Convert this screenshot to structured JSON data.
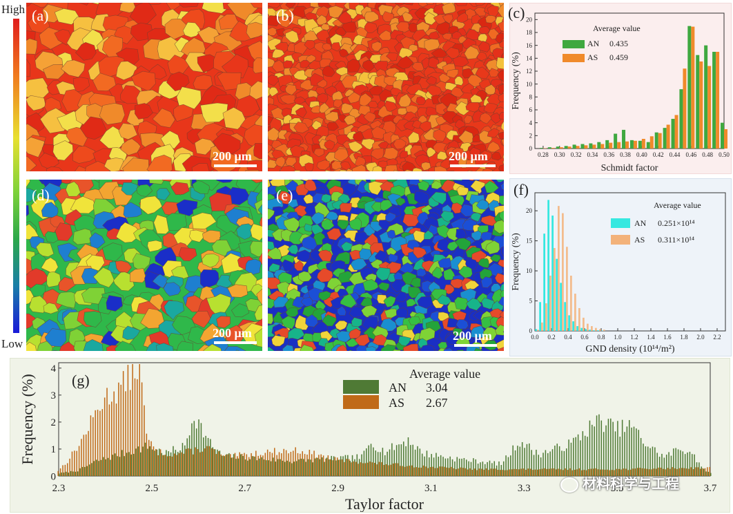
{
  "colorbar": {
    "high": "High",
    "low": "Low"
  },
  "maps": [
    {
      "label": "(a)",
      "scale": "200 μm",
      "palette": [
        "#e8361a",
        "#ee4a1c",
        "#f26a22",
        "#f08a2a",
        "#f5a236",
        "#e02a16",
        "#f6c040",
        "#f3df4a"
      ]
    },
    {
      "label": "(b)",
      "scale": "200 μm",
      "palette": [
        "#e8381a",
        "#ec4e1e",
        "#e4301a",
        "#f06a22",
        "#d92812",
        "#f08c2c",
        "#f4c23c"
      ]
    },
    {
      "label": "(d)",
      "scale": "200 μm",
      "palette": [
        "#2fb84a",
        "#7fd236",
        "#b8e030",
        "#f0e43a",
        "#f3a531",
        "#e8542a",
        "#1e7fd0",
        "#1a2ec8",
        "#1aa8a0",
        "#e23a2a"
      ]
    },
    {
      "label": "(e)",
      "scale": "200 μm",
      "palette": [
        "#1a2fc4",
        "#1b4fd6",
        "#23a43a",
        "#36c043",
        "#7fd336",
        "#1a8fd0",
        "#17b48a",
        "#f0d43a",
        "#e64a2a"
      ]
    }
  ],
  "chart_data": [
    {
      "type": "bar",
      "label": "(c)",
      "xlabel": "Schmidt factor",
      "ylabel": "Frequency (%)",
      "xlim": [
        0.27,
        0.5
      ],
      "ylim": [
        0,
        21
      ],
      "xticks": [
        "0.28",
        "0.30",
        "0.32",
        "0.34",
        "0.36",
        "0.38",
        "0.40",
        "0.42",
        "0.44",
        "0.46",
        "0.48",
        "0.50"
      ],
      "yticks": [
        "0",
        "2",
        "4",
        "6",
        "8",
        "10",
        "12",
        "14",
        "16",
        "18",
        "20"
      ],
      "legend_title": "Average value",
      "x": [
        0.28,
        0.29,
        0.3,
        0.31,
        0.32,
        0.33,
        0.34,
        0.35,
        0.36,
        0.37,
        0.38,
        0.39,
        0.4,
        0.41,
        0.42,
        0.43,
        0.44,
        0.45,
        0.46,
        0.47,
        0.48,
        0.49,
        0.5
      ],
      "series": [
        {
          "name": "AN",
          "avg": "0.435",
          "color": "#3fa83f",
          "values": [
            0.1,
            0.2,
            0.3,
            0.4,
            0.6,
            0.7,
            0.8,
            1.0,
            1.3,
            2.3,
            2.9,
            1.3,
            1.2,
            1.0,
            2.5,
            3.2,
            4.6,
            9.2,
            19.0,
            14.5,
            16.0,
            15.0,
            4.0
          ]
        },
        {
          "name": "AS",
          "avg": "0.459",
          "color": "#f08a2a",
          "values": [
            0.05,
            0.1,
            0.2,
            0.3,
            0.4,
            0.5,
            0.6,
            0.7,
            0.9,
            1.0,
            1.1,
            1.2,
            1.5,
            1.9,
            2.4,
            3.7,
            5.2,
            12.4,
            18.9,
            13.5,
            12.8,
            15.0,
            3.0
          ]
        }
      ]
    },
    {
      "type": "bar",
      "label": "(f)",
      "xlabel": "GND density (10¹⁴/m²)",
      "ylabel": "Frequency (%)",
      "xlim": [
        0,
        2.3
      ],
      "ylim": [
        0,
        23
      ],
      "xticks": [
        "0.0",
        "0.2",
        "0.4",
        "0.6",
        "0.8",
        "1.0",
        "1.2",
        "1.4",
        "1.6",
        "1.8",
        "2.0",
        "2.2"
      ],
      "yticks": [
        "0",
        "5",
        "10",
        "15",
        "20"
      ],
      "legend_title": "Average value",
      "x": [
        0.025,
        0.075,
        0.125,
        0.175,
        0.225,
        0.275,
        0.325,
        0.375,
        0.425,
        0.475,
        0.525,
        0.575,
        0.625,
        0.675,
        0.725,
        0.775,
        0.825
      ],
      "series": [
        {
          "name": "AN",
          "avg": "0.251×10¹⁴",
          "color": "#36e8e0",
          "values": [
            0.3,
            4.8,
            16.2,
            21.8,
            19.2,
            12.0,
            8.0,
            4.8,
            2.6,
            1.6,
            0.8,
            0.5,
            0.3,
            0.2,
            0.1,
            0.1,
            0.05
          ]
        },
        {
          "name": "AS",
          "avg": "0.311×10¹⁴",
          "color": "#f3b27a",
          "values": [
            0.2,
            1.4,
            4.6,
            9.2,
            13.8,
            20.8,
            19.6,
            14.0,
            9.2,
            6.2,
            3.8,
            2.2,
            1.2,
            0.8,
            0.5,
            0.3,
            0.2
          ]
        }
      ]
    },
    {
      "type": "bar",
      "label": "(g)",
      "xlabel": "Taylor factor",
      "ylabel": "Frequency (%)",
      "xlim": [
        2.3,
        3.7
      ],
      "ylim": [
        0,
        4.2
      ],
      "xticks": [
        "2.3",
        "2.5",
        "2.7",
        "2.9",
        "3.1",
        "3.3",
        "3.5",
        "3.7"
      ],
      "yticks": [
        "0",
        "1",
        "2",
        "3",
        "4"
      ],
      "legend_title": "Average value",
      "bin_width": 0.005,
      "series": [
        {
          "name": "AN",
          "avg": "3.04",
          "color": "#4f7a35",
          "segments": [
            [
              2.3,
              0.1
            ],
            [
              2.34,
              0.2
            ],
            [
              2.38,
              0.55
            ],
            [
              2.42,
              0.75
            ],
            [
              2.46,
              0.95
            ],
            [
              2.49,
              1.1
            ],
            [
              2.53,
              0.85
            ],
            [
              2.57,
              1.1
            ],
            [
              2.59,
              2.3
            ],
            [
              2.62,
              1.3
            ],
            [
              2.65,
              0.75
            ],
            [
              2.8,
              0.55
            ],
            [
              2.95,
              0.7
            ],
            [
              2.97,
              1.25
            ],
            [
              3.0,
              0.9
            ],
            [
              3.05,
              1.35
            ],
            [
              3.08,
              0.85
            ],
            [
              3.15,
              0.65
            ],
            [
              3.25,
              0.45
            ],
            [
              3.29,
              1.3
            ],
            [
              3.33,
              0.8
            ],
            [
              3.4,
              1.2
            ],
            [
              3.44,
              1.8
            ],
            [
              3.46,
              2.05
            ],
            [
              3.5,
              1.75
            ],
            [
              3.53,
              1.85
            ],
            [
              3.56,
              1.2
            ],
            [
              3.6,
              0.7
            ],
            [
              3.63,
              1.0
            ],
            [
              3.66,
              0.9
            ],
            [
              3.68,
              0.3
            ],
            [
              3.7,
              0.1
            ]
          ],
          "jitter": 0.35,
          "seed": 7
        },
        {
          "name": "AS",
          "avg": "2.67",
          "color": "#c06a18",
          "segments": [
            [
              2.3,
              0.2
            ],
            [
              2.32,
              0.55
            ],
            [
              2.35,
              1.3
            ],
            [
              2.38,
              2.3
            ],
            [
              2.4,
              2.9
            ],
            [
              2.43,
              3.2
            ],
            [
              2.46,
              3.8
            ],
            [
              2.475,
              4.1
            ],
            [
              2.49,
              1.5
            ],
            [
              2.51,
              0.9
            ],
            [
              2.55,
              0.8
            ],
            [
              2.58,
              0.9
            ],
            [
              2.62,
              1.05
            ],
            [
              2.66,
              0.7
            ],
            [
              2.75,
              0.9
            ],
            [
              2.82,
              0.95
            ],
            [
              2.9,
              0.6
            ],
            [
              3.0,
              0.45
            ],
            [
              3.08,
              0.35
            ],
            [
              3.2,
              0.25
            ],
            [
              3.35,
              0.25
            ],
            [
              3.5,
              0.25
            ],
            [
              3.65,
              0.3
            ],
            [
              3.7,
              0.3
            ]
          ],
          "jitter": 0.3,
          "seed": 13
        }
      ]
    }
  ],
  "watermark": "材料科学与工程"
}
